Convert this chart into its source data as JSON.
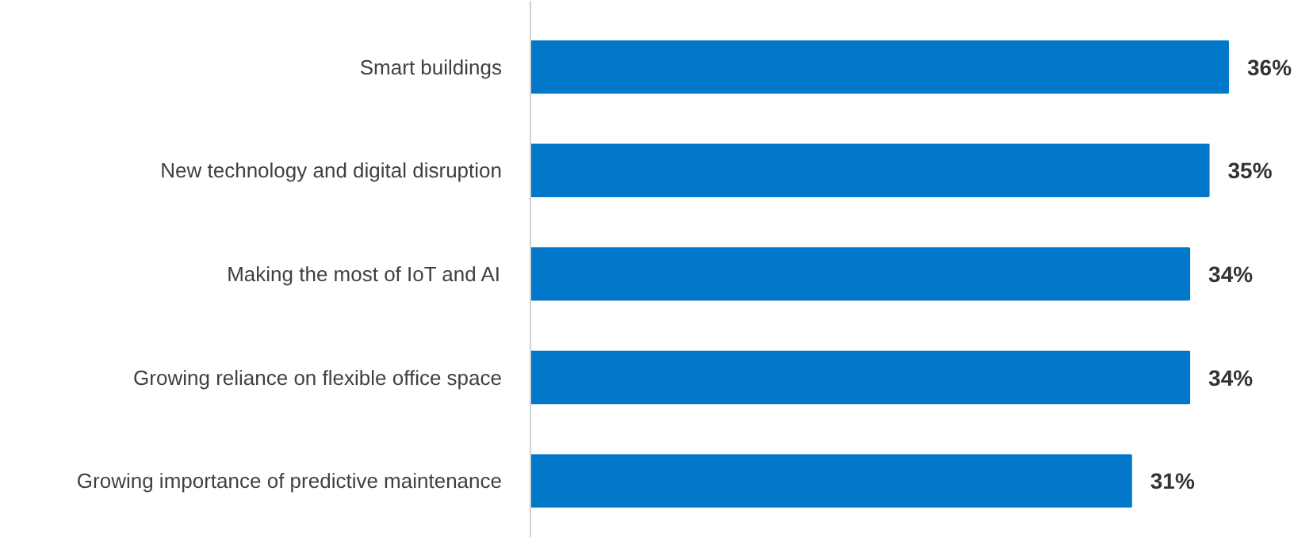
{
  "chart_data": {
    "type": "bar",
    "orientation": "horizontal",
    "categories": [
      "Smart buildings",
      "New technology and digital disruption",
      "Making the most of IoT and AI",
      "Growing reliance on flexible office space",
      "Growing importance of predictive maintenance"
    ],
    "values": [
      36,
      35,
      34,
      34,
      31
    ],
    "value_labels": [
      "36%",
      "35%",
      "34%",
      "34%",
      "31%"
    ],
    "color": "#0077c8",
    "grid": false
  }
}
